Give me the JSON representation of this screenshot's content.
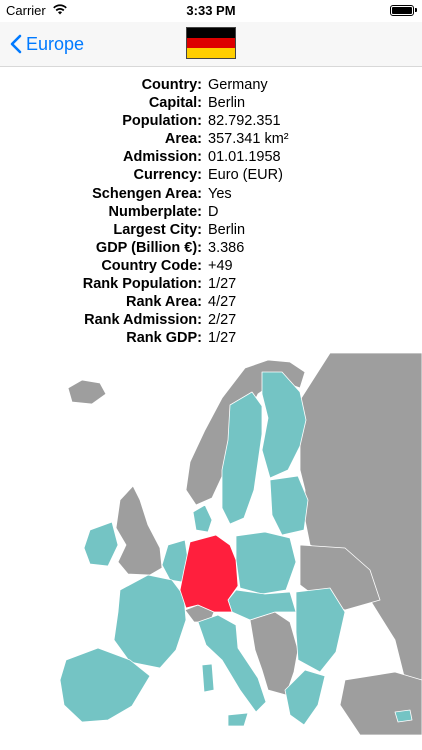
{
  "status_bar": {
    "carrier": "Carrier",
    "time": "3:33 PM"
  },
  "nav": {
    "back_label": "Europe",
    "flag_colors": [
      "#000000",
      "#dd0000",
      "#ffce00"
    ]
  },
  "details": [
    {
      "label": "Country:",
      "value": "Germany"
    },
    {
      "label": "Capital:",
      "value": "Berlin"
    },
    {
      "label": "Population:",
      "value": "82.792.351"
    },
    {
      "label": "Area:",
      "value": "357.341 km²"
    },
    {
      "label": "Admission:",
      "value": "01.01.1958"
    },
    {
      "label": "Currency:",
      "value": "Euro (EUR)"
    },
    {
      "label": "Schengen Area:",
      "value": "Yes"
    },
    {
      "label": "Numberplate:",
      "value": "D"
    },
    {
      "label": "Largest City:",
      "value": "Berlin"
    },
    {
      "label": "GDP (Billion €):",
      "value": "3.386"
    },
    {
      "label": "Country Code:",
      "value": "+49"
    },
    {
      "label": "Rank Population:",
      "value": "1/27"
    },
    {
      "label": "Rank Area:",
      "value": "4/27"
    },
    {
      "label": "Rank Admission:",
      "value": "2/27"
    },
    {
      "label": "Rank GDP:",
      "value": "1/27"
    }
  ],
  "map": {
    "colors": {
      "eu": "#74c4c4",
      "non_eu": "#9e9e9e",
      "selected": "#ff1f3d",
      "border": "#ffffff"
    }
  }
}
